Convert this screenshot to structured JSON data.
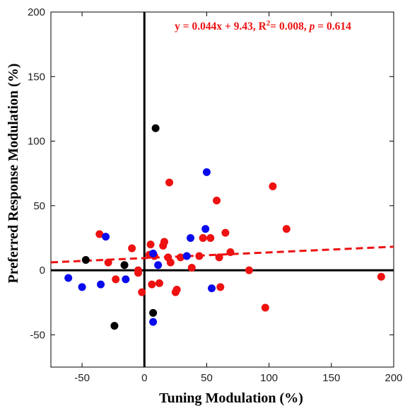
{
  "chart_data": {
    "type": "scatter",
    "xlabel": "Tuning Modulation (%)",
    "ylabel": "Preferred Response Modulation (%)",
    "xlim": [
      -75,
      200
    ],
    "ylim": [
      -75,
      200
    ],
    "x_ticks": [
      -50,
      0,
      50,
      100,
      150,
      200
    ],
    "y_ticks": [
      -50,
      0,
      50,
      100,
      150,
      200
    ],
    "grid": false,
    "colors": {
      "red": "#ee1111",
      "blue": "#0a0aee",
      "black": "#000000",
      "fit_line": "#ee1111"
    },
    "annotation": {
      "prefix": "y = 0.044x + 9.43, R",
      "sup": "2",
      "mid": "= 0.008, ",
      "p_label": "p",
      "suffix": " = 0.614"
    },
    "fit": {
      "slope": 0.044,
      "intercept": 9.43,
      "style": "dashed"
    },
    "series": [
      {
        "color": "red",
        "points": [
          [
            -36,
            28
          ],
          [
            -29,
            6
          ],
          [
            -23,
            -7
          ],
          [
            -10,
            17
          ],
          [
            -5,
            -2
          ],
          [
            -5,
            0
          ],
          [
            -2,
            -17
          ],
          [
            4,
            12
          ],
          [
            5,
            20
          ],
          [
            6,
            -11
          ],
          [
            8,
            11
          ],
          [
            12,
            -10
          ],
          [
            15,
            19
          ],
          [
            16,
            22
          ],
          [
            19,
            10
          ],
          [
            20,
            68
          ],
          [
            21,
            6
          ],
          [
            25,
            -17
          ],
          [
            26,
            -15
          ],
          [
            29,
            10
          ],
          [
            38,
            2
          ],
          [
            44,
            11
          ],
          [
            47,
            25
          ],
          [
            53,
            25
          ],
          [
            58,
            54
          ],
          [
            60,
            10
          ],
          [
            61,
            -13
          ],
          [
            65,
            29
          ],
          [
            69,
            14
          ],
          [
            84,
            0
          ],
          [
            97,
            -29
          ],
          [
            103,
            65
          ],
          [
            114,
            32
          ],
          [
            190,
            -5
          ]
        ]
      },
      {
        "color": "blue",
        "points": [
          [
            -61,
            -6
          ],
          [
            -50,
            -13
          ],
          [
            -35,
            -11
          ],
          [
            -31,
            26
          ],
          [
            -15,
            -7
          ],
          [
            7,
            13
          ],
          [
            7,
            -40
          ],
          [
            11,
            4
          ],
          [
            34,
            11
          ],
          [
            37,
            25
          ],
          [
            49,
            32
          ],
          [
            50,
            76
          ],
          [
            54,
            -14
          ]
        ]
      },
      {
        "color": "black",
        "points": [
          [
            -47,
            8
          ],
          [
            -24,
            -43
          ],
          [
            -16,
            4
          ],
          [
            7,
            -33
          ],
          [
            9,
            110
          ]
        ]
      }
    ]
  }
}
